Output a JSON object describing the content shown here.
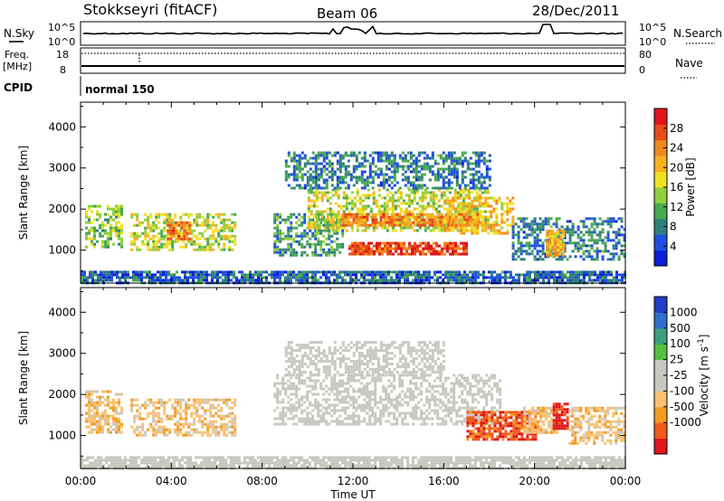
{
  "header": {
    "station": "Stokkseyri (fitACF)",
    "beam": "Beam 06",
    "date": "28/Dec/2011"
  },
  "strips": {
    "nsky_label": "N.Sky",
    "nsky_top": "10^5",
    "nsky_bottom": "10^0",
    "nsearch_label": "N.Search",
    "nsearch_top": "10^5",
    "nsearch_bottom": "10^0",
    "freq_label_1": "Freq.",
    "freq_label_2": "[MHz]",
    "freq_top": "18",
    "freq_bottom": "8",
    "nave_label": "Nave",
    "nave_top": "80",
    "nave_bottom": "0",
    "cpid_label": "CPID",
    "cpid_value": "normal 150"
  },
  "chart_data": [
    {
      "type": "heatmap",
      "id": "power",
      "ylabel": "Slant Range [km]",
      "ylim": [
        200,
        4600
      ],
      "yticks": [
        1000,
        2000,
        3000,
        4000
      ],
      "xlim": [
        0,
        24
      ],
      "colorbar_label": "Power [dB]",
      "colorbar_ticks": [
        4,
        8,
        12,
        16,
        20,
        24,
        28
      ],
      "colorbar_range": [
        0,
        32
      ],
      "colors": [
        "#0a1fd6",
        "#1f4fe0",
        "#2f7f7a",
        "#48a850",
        "#8fcf3c",
        "#f0e020",
        "#f7b020",
        "#f08a1e",
        "#e84a18",
        "#e0141a"
      ],
      "patches": [
        {
          "t0": 0.2,
          "t1": 1.8,
          "r0": 1100,
          "r1": 2100,
          "v": 14
        },
        {
          "t0": 2.2,
          "t1": 6.8,
          "r0": 1000,
          "r1": 1900,
          "v": 16
        },
        {
          "t0": 3.8,
          "t1": 4.8,
          "r0": 1300,
          "r1": 1700,
          "v": 24
        },
        {
          "t0": 8.5,
          "t1": 11.5,
          "r0": 900,
          "r1": 1900,
          "v": 10
        },
        {
          "t0": 10.0,
          "t1": 18.0,
          "r0": 1500,
          "r1": 2500,
          "v": 16
        },
        {
          "t0": 11.5,
          "t1": 17.5,
          "r0": 1600,
          "r1": 1900,
          "v": 24
        },
        {
          "t0": 11.8,
          "t1": 17.0,
          "r0": 900,
          "r1": 1200,
          "v": 28
        },
        {
          "t0": 16.0,
          "t1": 19.0,
          "r0": 1400,
          "r1": 2300,
          "v": 20
        },
        {
          "t0": 9.0,
          "t1": 18.0,
          "r0": 2500,
          "r1": 3400,
          "v": 8
        },
        {
          "t0": 19.0,
          "t1": 24.0,
          "r0": 800,
          "r1": 1800,
          "v": 8
        },
        {
          "t0": 20.5,
          "t1": 21.3,
          "r0": 900,
          "r1": 1500,
          "v": 20
        },
        {
          "t0": 0.0,
          "t1": 24.0,
          "r0": 200,
          "r1": 500,
          "v": 6
        }
      ]
    },
    {
      "type": "heatmap",
      "id": "velocity",
      "ylabel": "Slant Range [km]",
      "ylim": [
        200,
        4600
      ],
      "yticks": [
        1000,
        2000,
        3000,
        4000
      ],
      "xlim": [
        0,
        24
      ],
      "xlabel": "Time UT",
      "xticks": [
        "00:00",
        "04:00",
        "08:00",
        "12:00",
        "16:00",
        "20:00",
        "00:00"
      ],
      "colorbar_label": "Velocity [m s",
      "colorbar_label_sup": "-1",
      "colorbar_label_end": "]",
      "colorbar_ticks": [
        "1000",
        "500",
        "100",
        "25",
        "-25",
        "-100",
        "-500",
        "-1000"
      ],
      "colors": [
        "#e0141a",
        "#f05a1a",
        "#f59a20",
        "#f8c070",
        "#c8c8c0",
        "#c8c8c0",
        "#58c040",
        "#3aa080",
        "#2f6fd0",
        "#1f3fc8"
      ],
      "patches": [
        {
          "t0": 0.2,
          "t1": 1.8,
          "r0": 1100,
          "r1": 2100,
          "v": -300
        },
        {
          "t0": 2.2,
          "t1": 6.8,
          "r0": 1000,
          "r1": 1900,
          "v": -300
        },
        {
          "t0": 8.5,
          "t1": 18.5,
          "r0": 1300,
          "r1": 2500,
          "v": 0
        },
        {
          "t0": 9.0,
          "t1": 16.0,
          "r0": 2500,
          "r1": 3300,
          "v": 0
        },
        {
          "t0": 17.0,
          "t1": 20.0,
          "r0": 900,
          "r1": 1600,
          "v": -700
        },
        {
          "t0": 19.5,
          "t1": 21.0,
          "r0": 1100,
          "r1": 1700,
          "v": -300
        },
        {
          "t0": 20.8,
          "t1": 21.5,
          "r0": 1200,
          "r1": 1800,
          "v": -900
        },
        {
          "t0": 21.5,
          "t1": 24.0,
          "r0": 800,
          "r1": 1700,
          "v": -300
        },
        {
          "t0": 0.0,
          "t1": 24.0,
          "r0": 200,
          "r1": 500,
          "v": 50
        }
      ]
    }
  ]
}
